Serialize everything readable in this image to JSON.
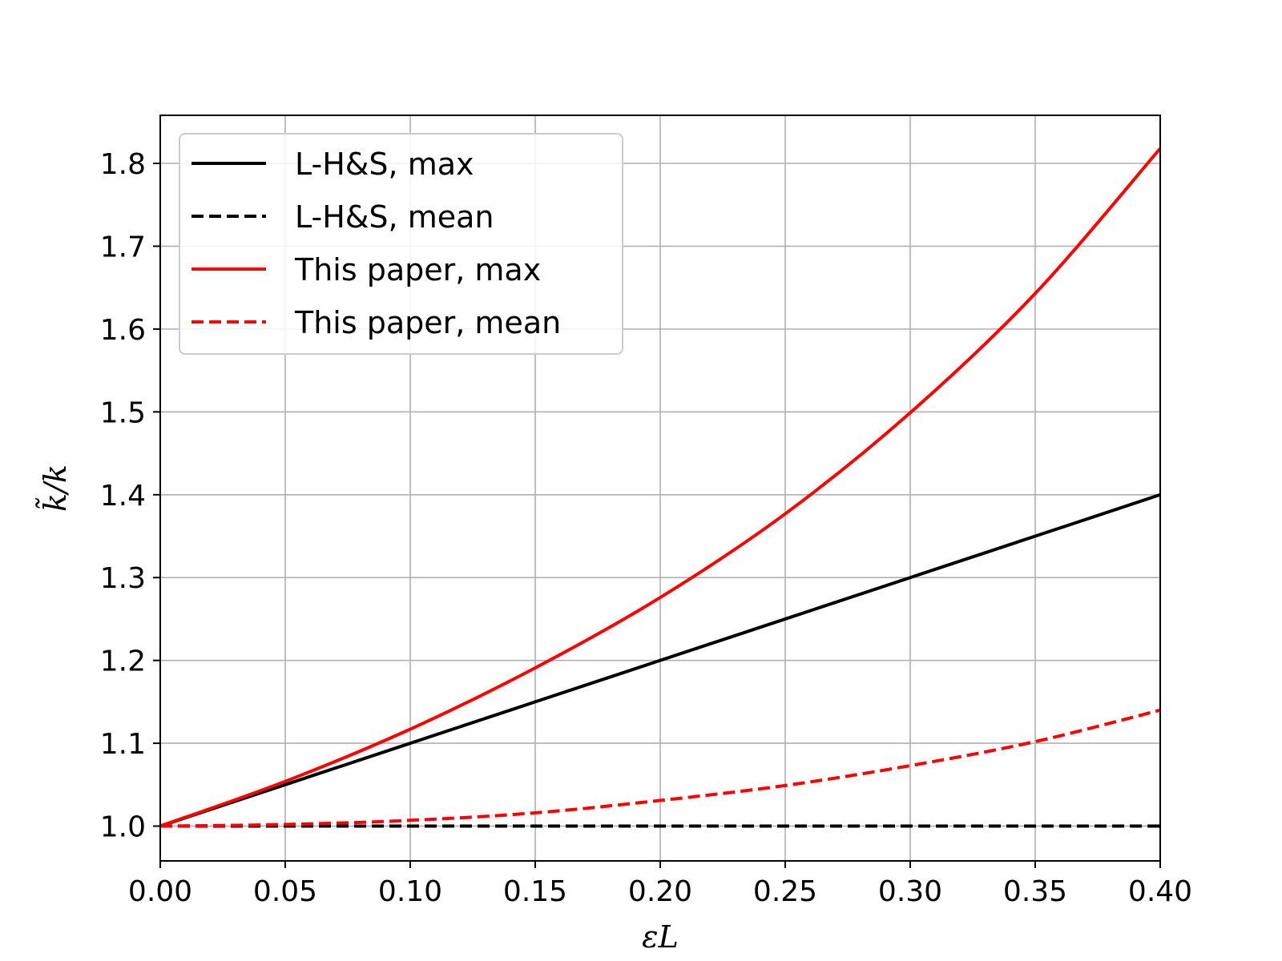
{
  "chart_data": {
    "type": "line",
    "title": "",
    "xlabel": "εL",
    "ylabel": "k̃/k",
    "xlim": [
      0.0,
      0.4
    ],
    "ylim": [
      0.958,
      1.858
    ],
    "grid": true,
    "legend_position": "top-left",
    "x_ticks": [
      "0.00",
      "0.05",
      "0.10",
      "0.15",
      "0.20",
      "0.25",
      "0.30",
      "0.35",
      "0.40"
    ],
    "y_ticks": [
      "1.0",
      "1.1",
      "1.2",
      "1.3",
      "1.4",
      "1.5",
      "1.6",
      "1.7",
      "1.8"
    ],
    "x": [
      0.0,
      0.05,
      0.1,
      0.15,
      0.2,
      0.25,
      0.3,
      0.35,
      0.4
    ],
    "series": [
      {
        "name": "L-H&S, max",
        "color": "#000000",
        "dash": "solid",
        "values": [
          1.0,
          1.05,
          1.1,
          1.15,
          1.2,
          1.25,
          1.3,
          1.35,
          1.4
        ]
      },
      {
        "name": "L-H&S, mean",
        "color": "#000000",
        "dash": "dashed",
        "values": [
          1.0,
          1.0,
          1.0,
          1.0,
          1.0,
          1.0,
          1.0,
          1.0,
          1.0
        ]
      },
      {
        "name": "This paper, max",
        "color": "#ff0000",
        "dash": "solid",
        "values": [
          1.0,
          1.054,
          1.117,
          1.191,
          1.276,
          1.377,
          1.499,
          1.643,
          1.818
        ]
      },
      {
        "name": "This paper, mean",
        "color": "#ff0000",
        "dash": "dashed",
        "values": [
          1.0,
          1.002,
          1.007,
          1.016,
          1.031,
          1.049,
          1.073,
          1.102,
          1.14
        ]
      }
    ]
  }
}
